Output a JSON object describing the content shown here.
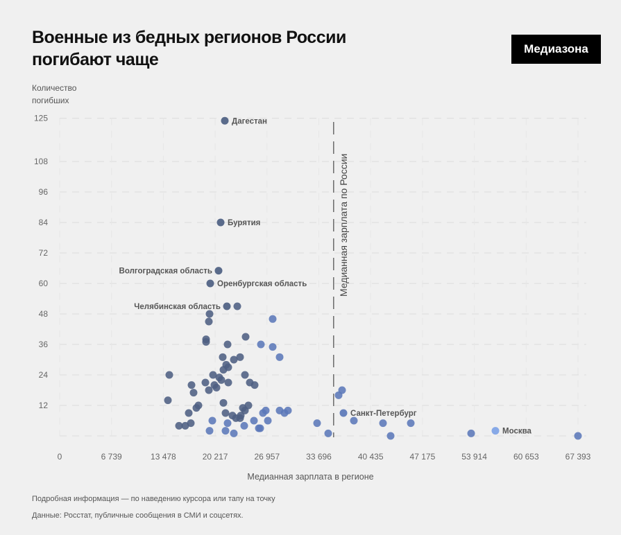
{
  "header": {
    "title_line1": "Военные из бедных регионов России",
    "title_line2": "погибают чаще",
    "logo": "Медиазона"
  },
  "footer": {
    "hint": "Подробная информация — по наведению курсора или тапу на точку",
    "source": "Данные: Росстат, публичные сообщения в СМИ и соцсетях."
  },
  "chart_data": {
    "type": "scatter",
    "title": "Военные из бедных регионов России погибают чаще",
    "xlabel": "Медианная зарплата в регионе",
    "ylabel": "Количество погибших",
    "xlim": [
      0,
      67393
    ],
    "ylim": [
      0,
      125
    ],
    "grid": true,
    "x_ticks": [
      "0",
      "6 739",
      "13 478",
      "20 217",
      "26 957",
      "33 696",
      "40 435",
      "47 175",
      "53 914",
      "60 653",
      "67 393"
    ],
    "x_tick_values": [
      0,
      6739,
      13478,
      20217,
      26957,
      33696,
      40435,
      47175,
      53914,
      60653,
      67393
    ],
    "y_ticks": [
      "125",
      "108",
      "96",
      "84",
      "72",
      "60",
      "48",
      "36",
      "24",
      "12"
    ],
    "y_tick_values": [
      125,
      108,
      96,
      84,
      72,
      60,
      48,
      36,
      24,
      12
    ],
    "reference_line": {
      "x": 35620,
      "label": "Медианная зарплата по России"
    },
    "colors": {
      "dark": "#4d5f82",
      "mid": "#5b78b8",
      "light": "#7ea3e6"
    },
    "labeled_points": [
      {
        "name": "Дагестан",
        "x": 21472,
        "y": 124,
        "side": "right"
      },
      {
        "name": "Бурятия",
        "x": 20931,
        "y": 84,
        "side": "right"
      },
      {
        "name": "Волгоградская область",
        "x": 20660,
        "y": 65,
        "side": "left"
      },
      {
        "name": "Оренбургская область",
        "x": 19578,
        "y": 60,
        "side": "right"
      },
      {
        "name": "Челябинская область",
        "x": 21743,
        "y": 51,
        "side": "left"
      },
      {
        "name": "Санкт-Петербург",
        "x": 36900,
        "y": 9,
        "side": "right"
      },
      {
        "name": "Москва",
        "x": 56658,
        "y": 2,
        "side": "right"
      }
    ],
    "points": [
      [
        23096,
        51
      ],
      [
        19487,
        48
      ],
      [
        19397,
        45
      ],
      [
        27697,
        46
      ],
      [
        24179,
        39
      ],
      [
        19036,
        38
      ],
      [
        19036,
        37
      ],
      [
        21833,
        36
      ],
      [
        26164,
        36
      ],
      [
        27697,
        35
      ],
      [
        21201,
        31
      ],
      [
        22645,
        30
      ],
      [
        23457,
        31
      ],
      [
        28599,
        31
      ],
      [
        21653,
        28
      ],
      [
        21923,
        27
      ],
      [
        21292,
        26
      ],
      [
        14255,
        24
      ],
      [
        19939,
        24
      ],
      [
        20750,
        23
      ],
      [
        21021,
        22
      ],
      [
        21923,
        21
      ],
      [
        24089,
        24
      ],
      [
        24720,
        21
      ],
      [
        25352,
        20
      ],
      [
        17142,
        20
      ],
      [
        17412,
        17
      ],
      [
        18946,
        21
      ],
      [
        19397,
        18
      ],
      [
        20119,
        20
      ],
      [
        20390,
        19
      ],
      [
        14074,
        14
      ],
      [
        21292,
        13
      ],
      [
        18044,
        12
      ],
      [
        17773,
        11
      ],
      [
        16781,
        9
      ],
      [
        23818,
        11
      ],
      [
        24540,
        12
      ],
      [
        24089,
        10
      ],
      [
        21563,
        9
      ],
      [
        22465,
        8
      ],
      [
        22916,
        7
      ],
      [
        23457,
        7
      ],
      [
        23547,
        8
      ],
      [
        15518,
        4
      ],
      [
        16330,
        4
      ],
      [
        17051,
        5
      ],
      [
        19848,
        6
      ],
      [
        21833,
        5
      ],
      [
        23998,
        4
      ],
      [
        25262,
        6
      ],
      [
        25894,
        3
      ],
      [
        26074,
        3
      ],
      [
        26435,
        9
      ],
      [
        26795,
        10
      ],
      [
        27066,
        6
      ],
      [
        28599,
        10
      ],
      [
        29231,
        9
      ],
      [
        29682,
        10
      ],
      [
        19487,
        2
      ],
      [
        21563,
        2
      ],
      [
        22645,
        1
      ],
      [
        36720,
        18
      ],
      [
        36269,
        16
      ],
      [
        33472,
        5
      ],
      [
        38253,
        6
      ],
      [
        42042,
        5
      ],
      [
        45651,
        5
      ],
      [
        34916,
        1
      ],
      [
        43034,
        0
      ],
      [
        53500,
        1
      ],
      [
        67393,
        0
      ]
    ]
  }
}
